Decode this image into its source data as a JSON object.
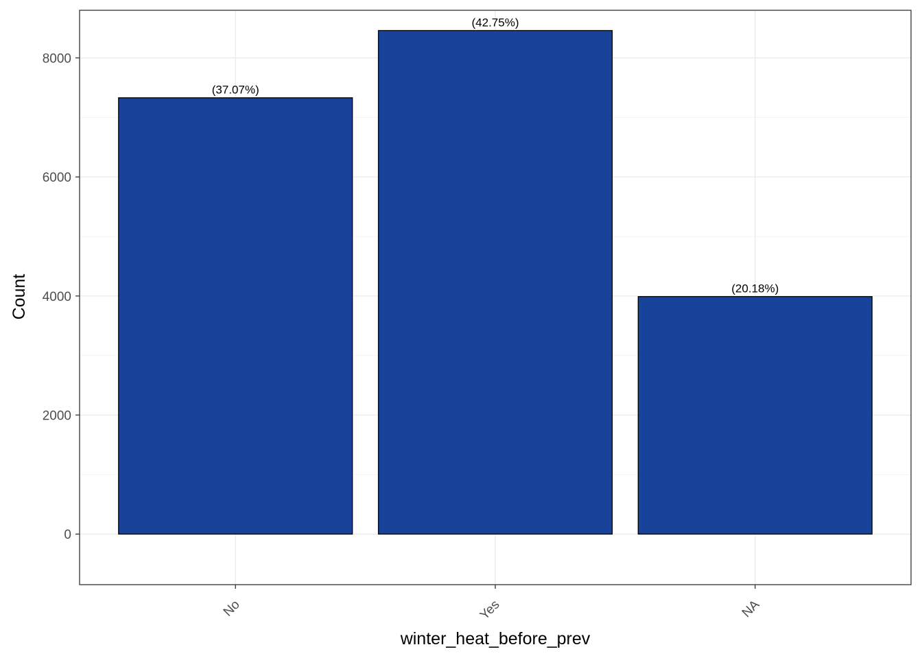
{
  "chart_data": {
    "type": "bar",
    "categories": [
      "No",
      "Yes",
      "NA"
    ],
    "values": [
      7330,
      8460,
      3990
    ],
    "data_labels": [
      "(37.07%)",
      "(42.75%)",
      "(20.18%)"
    ],
    "xlabel": "winter_heat_before_prev",
    "ylabel": "Count",
    "ylim": [
      -850,
      8800
    ],
    "yticks": [
      0,
      2000,
      4000,
      6000,
      8000
    ],
    "ytick_labels": [
      "0",
      "2000",
      "4000",
      "6000",
      "8000"
    ],
    "x_tick_rotation": "45",
    "grid": true,
    "legend": "none",
    "colors": {
      "bar_fill": "#17449A",
      "bar_stroke": "#000000",
      "grid_major": "#EBEBEB",
      "grid_minor": "#F4F4F4",
      "panel_border": "#333333"
    }
  }
}
